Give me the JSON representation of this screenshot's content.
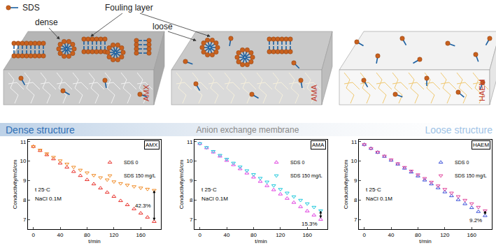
{
  "diagram": {
    "legend_label": "SDS",
    "fouling_layer": "Fouling layer",
    "dense": "dense",
    "loose": "loose",
    "membranes": [
      "AMX",
      "AMA",
      "HAEM"
    ],
    "scale": {
      "left": "Dense structure",
      "middle": "Anion exchange membrane",
      "right": "Loose structure"
    }
  },
  "chart_data": [
    {
      "type": "scatter",
      "label": "AMX",
      "xlabel": "t/min",
      "ylabel": "Conductivity/mS/cm",
      "annotations": [
        "t 25·C",
        "NaCl 0.1M"
      ],
      "difference": "42.3%",
      "x": [
        0,
        10,
        20,
        30,
        40,
        50,
        60,
        70,
        80,
        90,
        100,
        110,
        120,
        130,
        140,
        150,
        160,
        170,
        180
      ],
      "series": [
        {
          "name": "SDS 0",
          "color": "#e8302a",
          "marker": "triangle-up-open",
          "values": [
            10.75,
            10.54,
            10.32,
            10.11,
            9.89,
            9.68,
            9.46,
            9.25,
            9.04,
            8.82,
            8.61,
            8.39,
            8.18,
            7.96,
            7.75,
            7.54,
            7.32,
            7.11,
            6.89
          ]
        },
        {
          "name": "SDS 150 mg/L",
          "color": "#f08a24",
          "marker": "triangle-down-open",
          "values": [
            10.75,
            10.57,
            10.38,
            10.2,
            10.02,
            9.85,
            9.69,
            9.54,
            9.4,
            9.27,
            9.15,
            9.04,
            8.94,
            8.85,
            8.77,
            8.69,
            8.62,
            8.56,
            8.5
          ]
        }
      ],
      "xlim": [
        -8,
        190
      ],
      "xticks": [
        0,
        40,
        80,
        120,
        160
      ],
      "ylim": [
        6.5,
        11.1
      ],
      "yticks": [
        7,
        8,
        9,
        10,
        11
      ],
      "legend": "upper right"
    },
    {
      "type": "scatter",
      "label": "AMA",
      "xlabel": "t/min",
      "ylabel": "Conductivity/mS/cm",
      "annotations": [
        "t 25·C",
        "NaCl 0.1M"
      ],
      "difference": "15.3%",
      "x": [
        0,
        10,
        20,
        30,
        40,
        50,
        60,
        70,
        80,
        90,
        100,
        110,
        120,
        130,
        140,
        150,
        160,
        170,
        180
      ],
      "series": [
        {
          "name": "SDS 0",
          "color": "#e040e0",
          "marker": "triangle-up-open",
          "values": [
            10.9,
            10.68,
            10.46,
            10.25,
            10.03,
            9.81,
            9.6,
            9.38,
            9.17,
            8.95,
            8.73,
            8.52,
            8.3,
            8.08,
            7.87,
            7.65,
            7.43,
            7.22,
            7.0
          ]
        },
        {
          "name": "SDS 150 mg/L",
          "color": "#1fc9dc",
          "marker": "triangle-down-open",
          "values": [
            10.9,
            10.7,
            10.5,
            10.3,
            10.1,
            9.9,
            9.7,
            9.51,
            9.31,
            9.12,
            8.93,
            8.74,
            8.55,
            8.36,
            8.17,
            7.99,
            7.81,
            7.63,
            7.45
          ]
        }
      ],
      "xlim": [
        -8,
        190
      ],
      "xticks": [
        0,
        40,
        80,
        120,
        160
      ],
      "ylim": [
        6.5,
        11.1
      ],
      "yticks": [
        7,
        8,
        9,
        10,
        11
      ],
      "legend": "upper right"
    },
    {
      "type": "scatter",
      "label": "HAEM",
      "xlabel": "t/min",
      "ylabel": "Conductivity/mS/cm",
      "annotations": [
        "t 25·C",
        "NaCl 0.1M"
      ],
      "difference": "9.2%",
      "x": [
        0,
        10,
        20,
        30,
        40,
        50,
        60,
        70,
        80,
        90,
        100,
        110,
        120,
        130,
        140,
        150,
        160,
        170,
        180
      ],
      "series": [
        {
          "name": "SDS 0",
          "color": "#3a4fd8",
          "marker": "triangle-up-open",
          "values": [
            10.85,
            10.65,
            10.45,
            10.24,
            10.04,
            9.84,
            9.63,
            9.43,
            9.23,
            9.02,
            8.82,
            8.62,
            8.41,
            8.21,
            8.01,
            7.8,
            7.6,
            7.4,
            7.19
          ]
        },
        {
          "name": "SDS 150 mg/L",
          "color": "#e0409a",
          "marker": "triangle-down-open",
          "values": [
            10.85,
            10.65,
            10.46,
            10.26,
            10.07,
            9.87,
            9.68,
            9.49,
            9.3,
            9.11,
            8.92,
            8.73,
            8.55,
            8.36,
            8.18,
            7.99,
            7.81,
            7.63,
            7.45
          ]
        }
      ],
      "xlim": [
        -8,
        190
      ],
      "xticks": [
        0,
        40,
        80,
        120,
        160
      ],
      "ylim": [
        6.5,
        11.1
      ],
      "yticks": [
        7,
        8,
        9,
        10,
        11
      ],
      "legend": "upper right"
    }
  ]
}
